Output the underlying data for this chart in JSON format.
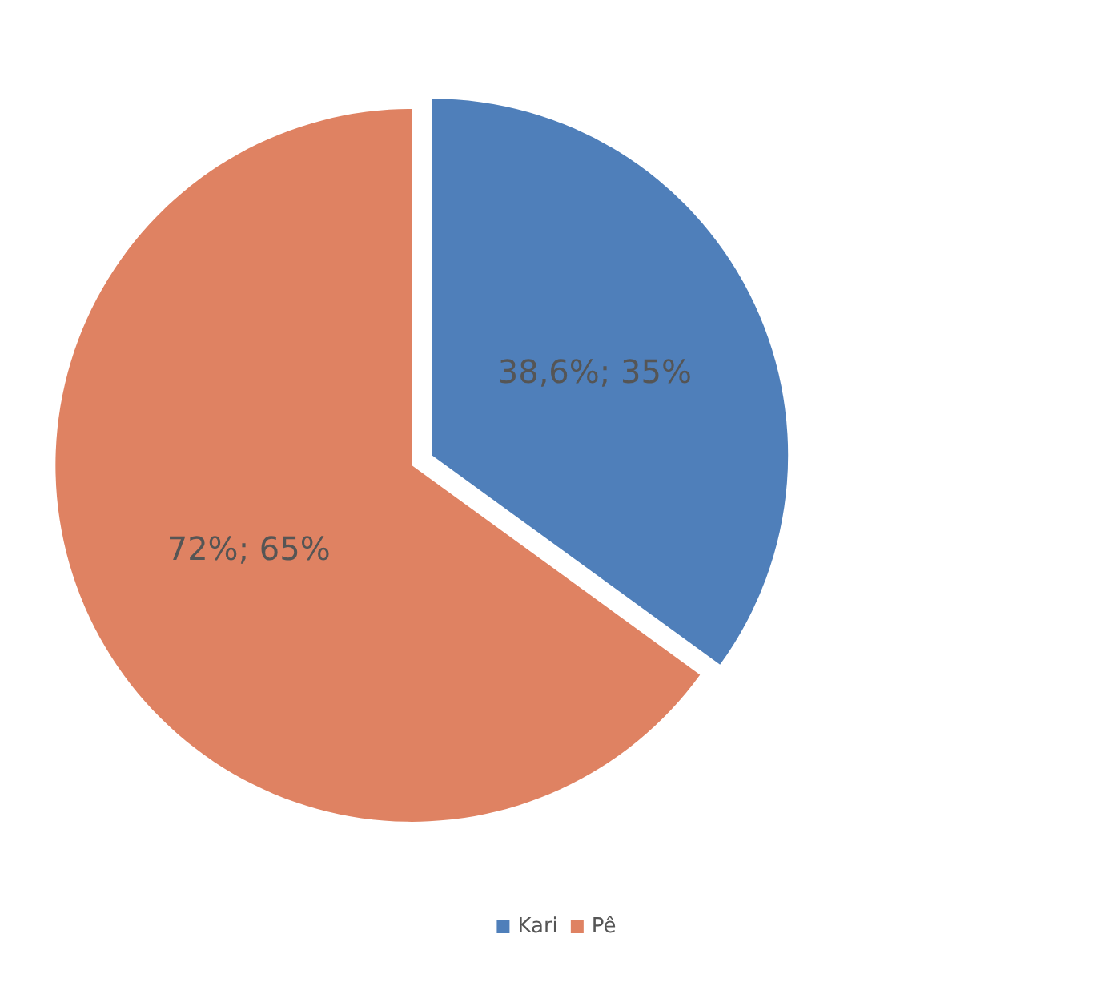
{
  "chart_data": {
    "type": "pie",
    "categories": [
      "Kari",
      "Pê"
    ],
    "values": [
      35,
      65
    ],
    "colors": [
      "#4f7fba",
      "#df8262"
    ],
    "value_labels": [
      "38,6%; 35%",
      "72%; 65%"
    ],
    "legend": "bottom"
  }
}
